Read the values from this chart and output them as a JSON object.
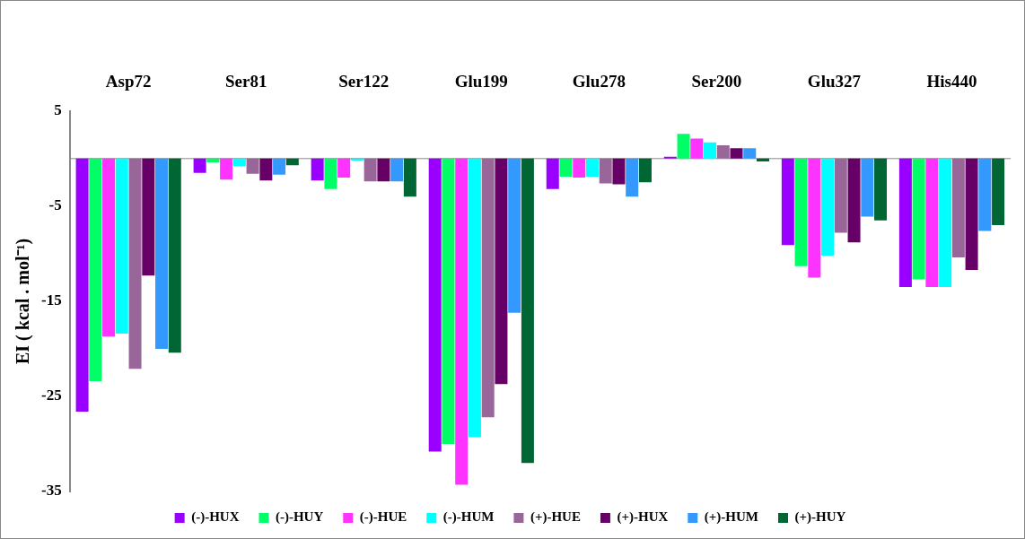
{
  "chart_data": {
    "type": "bar",
    "ylabel": "EI ( kcal . mol⁻¹)",
    "categories": [
      "Asp72",
      "Ser81",
      "Ser122",
      "Glu199",
      "Glu278",
      "Ser200",
      "Glu327",
      "His440"
    ],
    "ylim": [
      -35,
      5
    ],
    "yticks": [
      5,
      -5,
      -15,
      -25,
      -35
    ],
    "grid": false,
    "legend": "bottom",
    "series": [
      {
        "name": "(-)-HUX",
        "color": "#9900ff",
        "values": [
          -26.6,
          -1.5,
          -2.3,
          -30.8,
          -3.2,
          0.2,
          -9.1,
          -13.5
        ]
      },
      {
        "name": "(-)-HUY",
        "color": "#00ff66",
        "values": [
          -23.4,
          -0.4,
          -3.2,
          -30.0,
          -1.9,
          2.6,
          -11.3,
          -12.7
        ]
      },
      {
        "name": "(-)-HUE",
        "color": "#ff33ff",
        "values": [
          -18.7,
          -2.2,
          -2.0,
          -34.3,
          -2.0,
          2.1,
          -12.5,
          -13.5
        ]
      },
      {
        "name": "(-)-HUM",
        "color": "#00ffff",
        "values": [
          -18.4,
          -0.8,
          -0.2,
          -29.3,
          -1.9,
          1.7,
          -10.2,
          -13.5
        ]
      },
      {
        "name": "(+)-HUE",
        "color": "#996699",
        "values": [
          -22.1,
          -1.6,
          -2.4,
          -27.2,
          -2.6,
          1.4,
          -7.8,
          -10.4
        ]
      },
      {
        "name": "(+)-HUX",
        "color": "#660066",
        "values": [
          -12.3,
          -2.3,
          -2.4,
          -23.7,
          -2.7,
          1.1,
          -8.8,
          -11.7
        ]
      },
      {
        "name": "(+)-HUM",
        "color": "#3399ff",
        "values": [
          -20.0,
          -1.7,
          -2.4,
          -16.2,
          -4.0,
          1.1,
          -6.1,
          -7.6
        ]
      },
      {
        "name": "(+)-HUY",
        "color": "#006633",
        "values": [
          -20.4,
          -0.7,
          -4.0,
          -32.0,
          -2.5,
          -0.3,
          -6.5,
          -7.0
        ]
      }
    ]
  }
}
